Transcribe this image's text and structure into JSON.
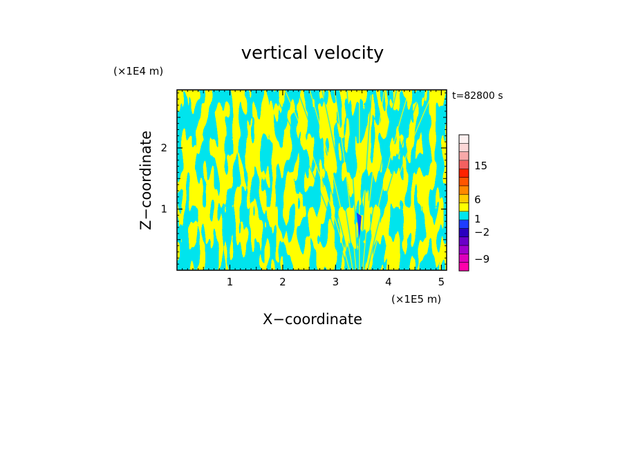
{
  "chart_data": {
    "type": "heatmap",
    "title": "vertical velocity",
    "time_label": "t=82800 s",
    "xlabel": "X−coordinate",
    "ylabel": "Z−coordinate",
    "x_scale_label": "(×1E5 m)",
    "y_scale_label": "(×1E4 m)",
    "xlim": [
      0,
      5.1
    ],
    "ylim": [
      0,
      2.95
    ],
    "x_ticks": [
      {
        "value": 1,
        "label": "1"
      },
      {
        "value": 2,
        "label": "2"
      },
      {
        "value": 3,
        "label": "3"
      },
      {
        "value": 4,
        "label": "4"
      },
      {
        "value": 5,
        "label": "5"
      }
    ],
    "y_ticks": [
      {
        "value": 1,
        "label": "1"
      },
      {
        "value": 2,
        "label": "2"
      }
    ],
    "field_levels": [
      {
        "range": [
          -0.5,
          0
        ],
        "color": "#00e5ee"
      },
      {
        "range": [
          0,
          0.5
        ],
        "color": "#ffff00"
      }
    ],
    "colorbar": {
      "bands": [
        {
          "color": "#ff00aa"
        },
        {
          "color": "#dd00bb"
        },
        {
          "color": "#a000cc"
        },
        {
          "color": "#6a00c8"
        },
        {
          "color": "#2a00c0"
        },
        {
          "color": "#1e3cff"
        },
        {
          "color": "#00e5ee"
        },
        {
          "color": "#ffff00"
        },
        {
          "color": "#ffcc00"
        },
        {
          "color": "#ff8800"
        },
        {
          "color": "#ff5500"
        },
        {
          "color": "#ff2200"
        },
        {
          "color": "#f36060"
        },
        {
          "color": "#f7a8a8"
        },
        {
          "color": "#fcd6d6"
        },
        {
          "color": "#fdf0f0"
        }
      ],
      "labels": [
        "15",
        "6",
        "1",
        "−2",
        "−9"
      ]
    }
  }
}
